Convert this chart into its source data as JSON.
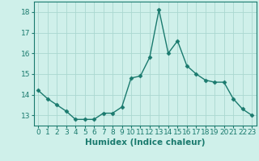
{
  "x": [
    0,
    1,
    2,
    3,
    4,
    5,
    6,
    7,
    8,
    9,
    10,
    11,
    12,
    13,
    14,
    15,
    16,
    17,
    18,
    19,
    20,
    21,
    22,
    23
  ],
  "y": [
    14.2,
    13.8,
    13.5,
    13.2,
    12.8,
    12.8,
    12.8,
    13.1,
    13.1,
    13.4,
    14.8,
    14.9,
    15.8,
    18.1,
    16.0,
    16.6,
    15.4,
    15.0,
    14.7,
    14.6,
    14.6,
    13.8,
    13.3,
    13.0
  ],
  "line_color": "#1a7a6e",
  "marker": "D",
  "marker_size": 2.5,
  "bg_color": "#cff0ea",
  "grid_color": "#aad8d0",
  "xlabel": "Humidex (Indice chaleur)",
  "ylim": [
    12.5,
    18.5
  ],
  "xlim": [
    -0.5,
    23.5
  ],
  "yticks": [
    13,
    14,
    15,
    16,
    17,
    18
  ],
  "xtick_labels": [
    "0",
    "1",
    "2",
    "3",
    "4",
    "5",
    "6",
    "7",
    "8",
    "9",
    "10",
    "11",
    "12",
    "13",
    "14",
    "15",
    "16",
    "17",
    "18",
    "19",
    "20",
    "21",
    "22",
    "23"
  ],
  "label_fontsize": 7.5,
  "tick_fontsize": 6.5
}
